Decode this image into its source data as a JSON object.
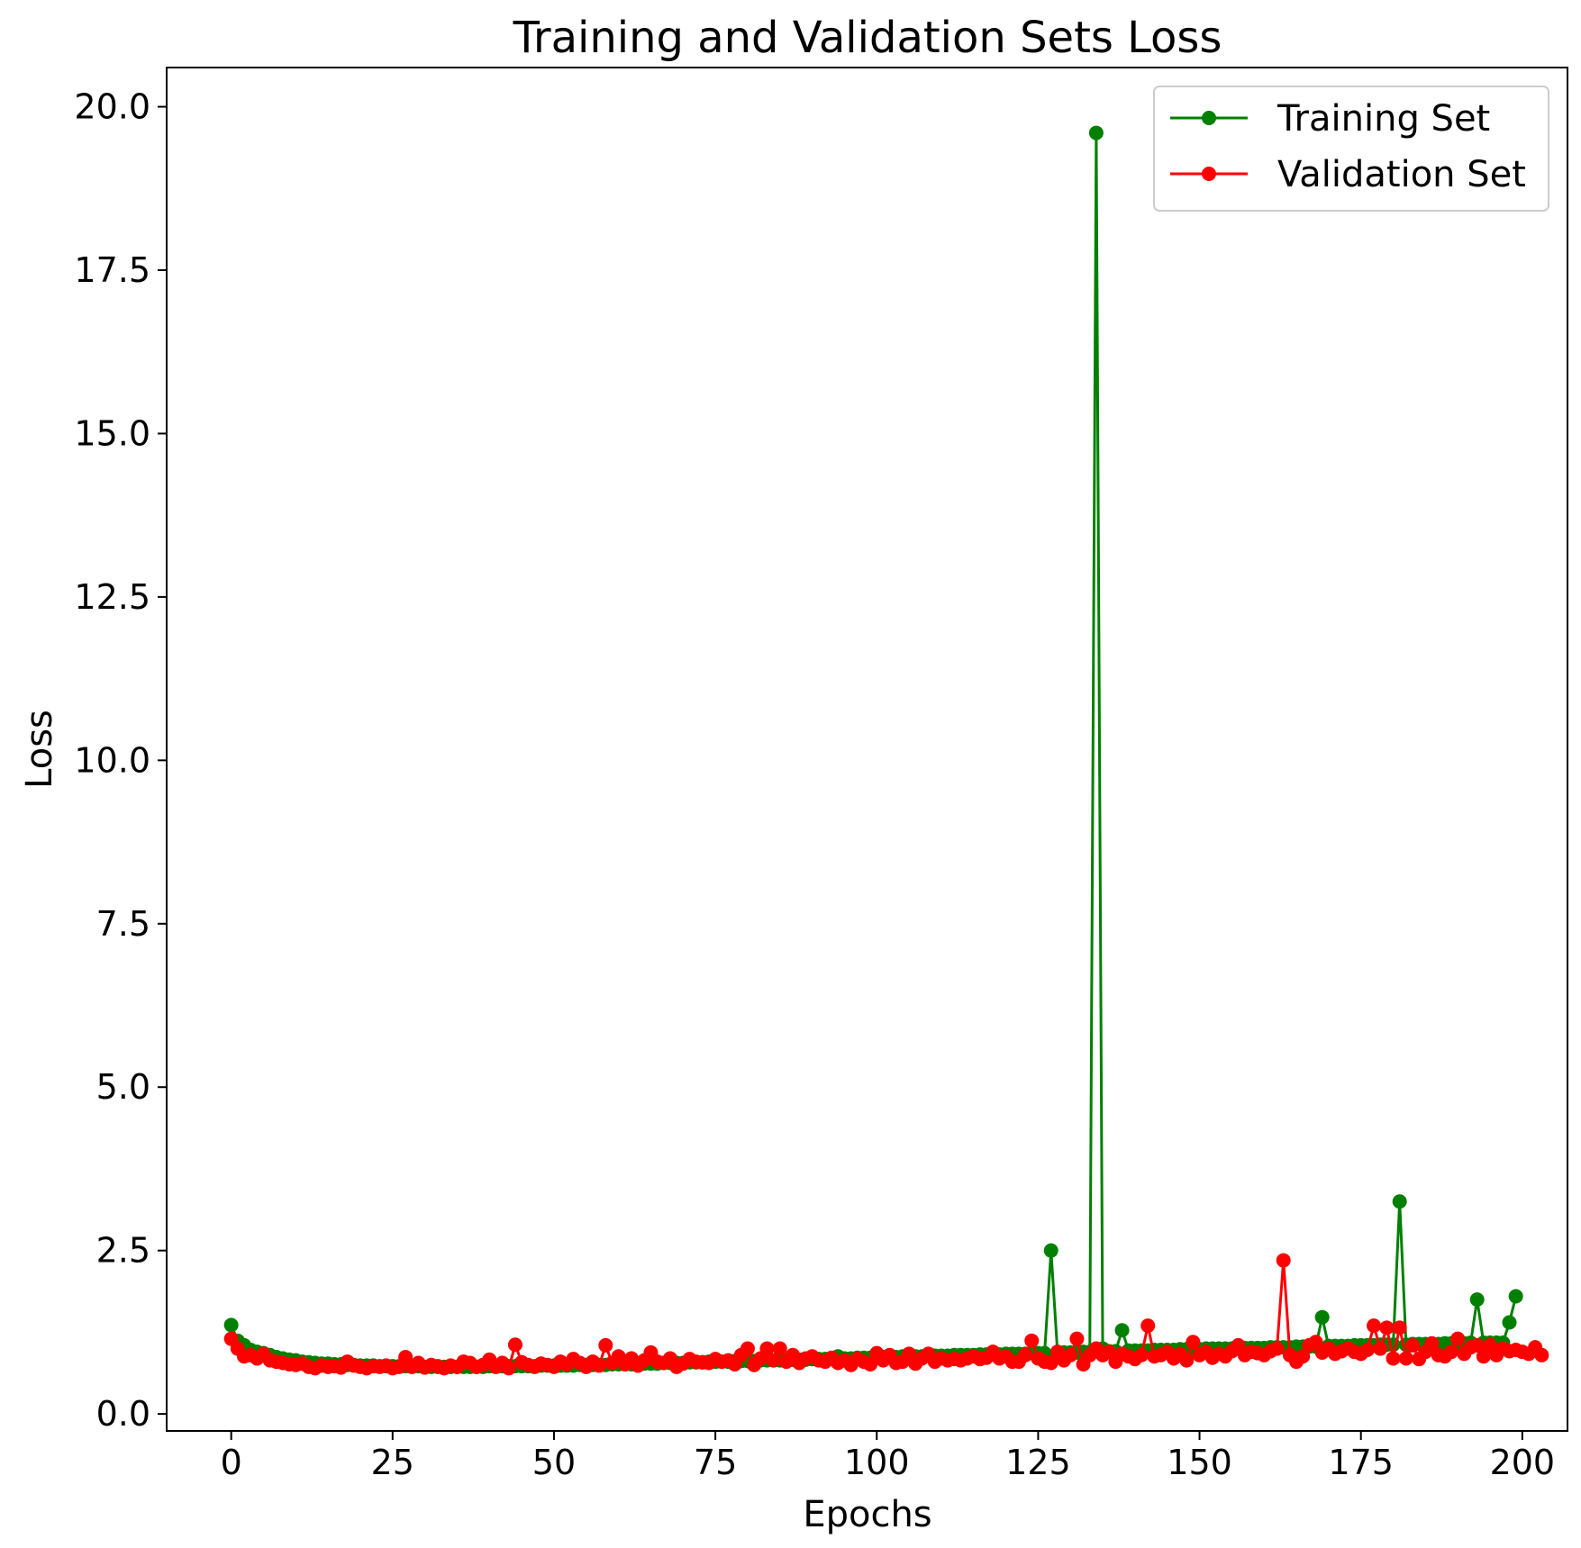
{
  "chart_data": {
    "type": "line",
    "title": "Training and Validation Sets Loss",
    "xlabel": "Epochs",
    "ylabel": "Loss",
    "xlim": [
      -10,
      207
    ],
    "ylim": [
      -0.26,
      20.6
    ],
    "x_ticks": [
      0,
      25,
      50,
      75,
      100,
      125,
      150,
      175,
      200
    ],
    "x_tick_labels": [
      "0",
      "25",
      "50",
      "75",
      "100",
      "125",
      "150",
      "175",
      "200"
    ],
    "y_ticks": [
      0,
      2.5,
      5,
      7.5,
      10,
      12.5,
      15,
      17.5,
      20
    ],
    "y_tick_labels": [
      "0.0",
      "2.5",
      "5.0",
      "7.5",
      "10.0",
      "12.5",
      "15.0",
      "17.5",
      "20.0"
    ],
    "grid": false,
    "legend_position": "top-right",
    "series": [
      {
        "name": "Training Set",
        "color": "#008000",
        "values": [
          1.36,
          1.12,
          1.05,
          0.98,
          0.95,
          0.93,
          0.9,
          0.87,
          0.85,
          0.83,
          0.82,
          0.8,
          0.79,
          0.78,
          0.77,
          0.77,
          0.76,
          0.76,
          0.75,
          0.75,
          0.74,
          0.74,
          0.74,
          0.73,
          0.73,
          0.73,
          0.73,
          0.73,
          0.73,
          0.73,
          0.72,
          0.72,
          0.72,
          0.72,
          0.72,
          0.72,
          0.72,
          0.72,
          0.72,
          0.72,
          0.73,
          0.73,
          0.73,
          0.73,
          0.73,
          0.73,
          0.73,
          0.73,
          0.74,
          0.74,
          0.74,
          0.74,
          0.74,
          0.74,
          0.75,
          0.75,
          0.75,
          0.75,
          0.75,
          0.76,
          0.76,
          0.76,
          0.76,
          0.77,
          0.77,
          0.77,
          0.77,
          0.78,
          0.78,
          0.78,
          0.78,
          0.79,
          0.79,
          0.79,
          0.8,
          0.8,
          0.8,
          0.8,
          0.81,
          0.81,
          0.81,
          0.81,
          0.82,
          0.82,
          0.82,
          0.82,
          0.83,
          0.83,
          0.83,
          0.83,
          0.84,
          0.84,
          0.84,
          0.84,
          0.88,
          0.85,
          0.85,
          0.86,
          0.86,
          0.86,
          0.9,
          0.87,
          0.87,
          0.87,
          0.88,
          0.88,
          0.88,
          0.88,
          0.89,
          0.89,
          0.89,
          0.89,
          0.9,
          0.9,
          0.9,
          0.9,
          0.91,
          0.91,
          0.91,
          0.91,
          0.92,
          0.92,
          0.92,
          0.92,
          0.93,
          0.93,
          0.93,
          2.5,
          0.94,
          0.94,
          0.94,
          0.94,
          0.95,
          0.95,
          19.6,
          1.0,
          0.96,
          0.96,
          1.28,
          0.97,
          0.97,
          0.97,
          0.97,
          0.98,
          0.98,
          0.98,
          0.98,
          0.99,
          0.99,
          0.99,
          0.99,
          1.0,
          1.0,
          1.0,
          1.0,
          1.0,
          1.0,
          1.01,
          1.01,
          1.01,
          1.01,
          1.02,
          1.02,
          1.02,
          1.02,
          1.03,
          1.03,
          1.03,
          1.03,
          1.48,
          1.04,
          1.04,
          1.04,
          1.04,
          1.05,
          1.05,
          1.05,
          1.05,
          1.06,
          1.06,
          1.06,
          3.25,
          1.06,
          1.07,
          1.07,
          1.07,
          1.07,
          1.07,
          1.08,
          1.08,
          1.08,
          1.08,
          1.09,
          1.75,
          1.09,
          1.09,
          1.09,
          1.09,
          1.4,
          1.8
        ]
      },
      {
        "name": "Validation Set",
        "color": "#ff0000",
        "values": [
          1.15,
          1.0,
          0.88,
          0.9,
          0.85,
          0.92,
          0.82,
          0.8,
          0.78,
          0.76,
          0.75,
          0.77,
          0.72,
          0.7,
          0.74,
          0.72,
          0.73,
          0.71,
          0.8,
          0.74,
          0.72,
          0.7,
          0.73,
          0.72,
          0.74,
          0.7,
          0.72,
          0.87,
          0.72,
          0.78,
          0.71,
          0.75,
          0.73,
          0.7,
          0.74,
          0.72,
          0.8,
          0.78,
          0.72,
          0.75,
          0.83,
          0.72,
          0.78,
          0.7,
          1.06,
          0.79,
          0.75,
          0.72,
          0.77,
          0.75,
          0.72,
          0.8,
          0.76,
          0.84,
          0.78,
          0.72,
          0.8,
          0.74,
          1.05,
          0.78,
          0.88,
          0.76,
          0.85,
          0.74,
          0.82,
          0.94,
          0.8,
          0.78,
          0.85,
          0.72,
          0.77,
          0.84,
          0.8,
          0.79,
          0.78,
          0.84,
          0.8,
          0.82,
          0.76,
          0.9,
          1.0,
          0.75,
          0.85,
          1.0,
          0.82,
          1.0,
          0.8,
          0.9,
          0.78,
          0.85,
          0.88,
          0.82,
          0.8,
          0.86,
          0.78,
          0.82,
          0.75,
          0.84,
          0.8,
          0.76,
          0.93,
          0.82,
          0.9,
          0.78,
          0.8,
          0.92,
          0.77,
          0.85,
          0.92,
          0.8,
          0.85,
          0.82,
          0.84,
          0.82,
          0.85,
          0.88,
          0.84,
          0.86,
          0.95,
          0.85,
          0.88,
          0.8,
          0.8,
          0.9,
          1.12,
          0.85,
          0.8,
          0.78,
          0.95,
          0.82,
          0.9,
          1.15,
          0.76,
          0.9,
          1.0,
          0.9,
          0.95,
          0.8,
          0.92,
          0.88,
          0.84,
          0.9,
          1.35,
          0.88,
          0.9,
          0.95,
          0.85,
          0.92,
          0.82,
          1.1,
          0.9,
          0.95,
          0.86,
          0.92,
          0.88,
          0.96,
          1.05,
          0.9,
          0.95,
          0.93,
          0.9,
          0.96,
          1.0,
          2.35,
          0.9,
          0.8,
          0.88,
          1.05,
          1.1,
          0.94,
          1.0,
          0.92,
          0.96,
          1.0,
          0.95,
          0.92,
          0.98,
          1.35,
          1.0,
          1.32,
          0.85,
          1.32,
          0.85,
          1.05,
          0.84,
          0.95,
          1.08,
          0.9,
          0.88,
          0.95,
          1.15,
          0.92,
          1.02,
          1.05,
          0.88,
          1.05,
          0.9,
          1.0,
          0.96,
          0.98,
          0.95,
          0.92,
          1.02,
          0.9
        ]
      }
    ]
  }
}
